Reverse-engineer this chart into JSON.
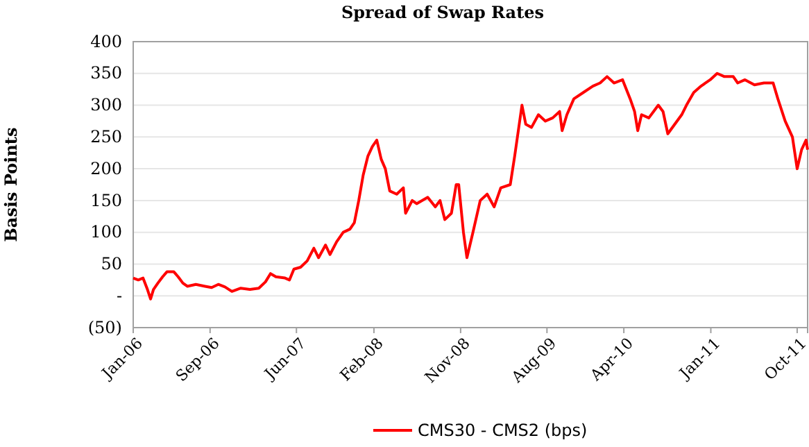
{
  "chart_data": {
    "type": "line",
    "title": "Spread of Swap Rates",
    "ylabel": "Basis Points",
    "x": [
      "2006-01-01",
      "2006-01-17",
      "2006-02-01",
      "2006-02-15",
      "2006-02-25",
      "2006-03-06",
      "2006-03-20",
      "2006-04-04",
      "2006-04-18",
      "2006-05-09",
      "2006-05-23",
      "2006-06-07",
      "2006-06-21",
      "2006-07-18",
      "2006-08-16",
      "2006-09-06",
      "2006-09-27",
      "2006-10-18",
      "2006-11-09",
      "2006-12-07",
      "2007-01-05",
      "2007-02-02",
      "2007-02-23",
      "2007-03-11",
      "2007-03-28",
      "2007-04-26",
      "2007-05-10",
      "2007-05-24",
      "2007-06-14",
      "2007-07-05",
      "2007-07-26",
      "2007-08-10",
      "2007-09-01",
      "2007-09-15",
      "2007-10-06",
      "2007-10-27",
      "2007-11-17",
      "2007-12-01",
      "2007-12-15",
      "2007-12-29",
      "2008-01-13",
      "2008-01-27",
      "2008-02-10",
      "2008-02-24",
      "2008-03-08",
      "2008-03-22",
      "2008-04-13",
      "2008-05-04",
      "2008-05-11",
      "2008-06-01",
      "2008-06-15",
      "2008-07-20",
      "2008-08-13",
      "2008-08-28",
      "2008-09-12",
      "2008-10-03",
      "2008-10-18",
      "2008-10-26",
      "2008-11-10",
      "2008-11-21",
      "2008-12-10",
      "2009-01-02",
      "2009-01-24",
      "2009-02-15",
      "2009-03-08",
      "2009-04-07",
      "2009-04-21",
      "2009-05-14",
      "2009-05-26",
      "2009-06-13",
      "2009-07-05",
      "2009-07-27",
      "2009-08-19",
      "2009-09-10",
      "2009-09-18",
      "2009-10-03",
      "2009-10-25",
      "2009-11-24",
      "2009-12-24",
      "2010-01-16",
      "2010-02-07",
      "2010-03-01",
      "2010-03-28",
      "2010-04-21",
      "2010-05-05",
      "2010-05-15",
      "2010-05-27",
      "2010-06-19",
      "2010-07-19",
      "2010-08-03",
      "2010-08-18",
      "2010-09-09",
      "2010-10-01",
      "2010-10-16",
      "2010-11-08",
      "2010-12-01",
      "2010-12-30",
      "2011-01-21",
      "2011-02-13",
      "2011-03-13",
      "2011-03-27",
      "2011-04-19",
      "2011-05-19",
      "2011-06-18",
      "2011-07-17",
      "2011-08-01",
      "2011-08-24",
      "2011-09-16",
      "2011-10-01",
      "2011-10-15",
      "2011-10-29",
      "2011-11-03"
    ],
    "series": [
      {
        "name": "CMS30 - CMS2 (bps)",
        "color": "#ff0000",
        "values": [
          28,
          25,
          28,
          10,
          -5,
          10,
          20,
          30,
          38,
          38,
          30,
          20,
          15,
          18,
          15,
          13,
          18,
          14,
          7,
          12,
          10,
          12,
          22,
          35,
          30,
          28,
          25,
          42,
          45,
          55,
          75,
          60,
          80,
          65,
          85,
          100,
          105,
          115,
          150,
          190,
          220,
          235,
          245,
          215,
          200,
          165,
          160,
          170,
          130,
          150,
          145,
          155,
          140,
          150,
          120,
          130,
          175,
          175,
          100,
          60,
          100,
          150,
          160,
          140,
          170,
          175,
          220,
          300,
          270,
          265,
          285,
          275,
          280,
          290,
          260,
          285,
          310,
          320,
          330,
          335,
          345,
          335,
          340,
          310,
          290,
          260,
          285,
          280,
          300,
          290,
          255,
          270,
          285,
          300,
          320,
          330,
          340,
          350,
          345,
          345,
          335,
          340,
          332,
          335,
          335,
          310,
          275,
          250,
          200,
          230,
          245,
          230
        ]
      }
    ],
    "xlim": [
      "2006-01-01",
      "2011-11-03"
    ],
    "xticks": [
      {
        "value": "2006-01-01",
        "label": "Jan-06"
      },
      {
        "value": "2006-09-01",
        "label": "Sep-06"
      },
      {
        "value": "2007-06-01",
        "label": "Jun-07"
      },
      {
        "value": "2008-02-01",
        "label": "Feb-08"
      },
      {
        "value": "2008-11-01",
        "label": "Nov-08"
      },
      {
        "value": "2009-08-01",
        "label": "Aug-09"
      },
      {
        "value": "2010-04-01",
        "label": "Apr-10"
      },
      {
        "value": "2011-01-01",
        "label": "Jan-11"
      },
      {
        "value": "2011-10-01",
        "label": "Oct-11"
      }
    ],
    "ylim": [
      -50,
      400
    ],
    "yticks": [
      {
        "value": -50,
        "label": "(50)"
      },
      {
        "value": 0,
        "label": "-"
      },
      50,
      100,
      150,
      200,
      250,
      300,
      350,
      400
    ],
    "grid": "y",
    "legend": "bottom",
    "marker": "none",
    "line_style": "solid"
  }
}
